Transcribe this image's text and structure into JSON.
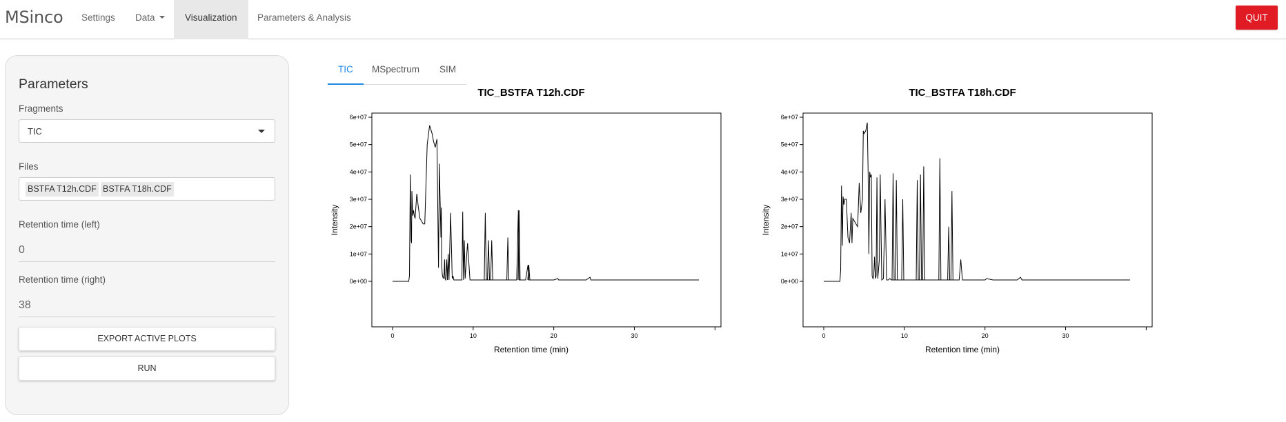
{
  "app": {
    "brand": "MSinco",
    "nav": [
      {
        "label": "Settings",
        "active": false
      },
      {
        "label": "Data",
        "active": false,
        "dropdown": true
      },
      {
        "label": "Visualization",
        "active": true
      },
      {
        "label": "Parameters & Analysis",
        "active": false
      }
    ],
    "quit_label": "QUIT",
    "accent_color": "#e01b24"
  },
  "sidebar": {
    "title": "Parameters",
    "fragments_label": "Fragments",
    "fragments_value": "TIC",
    "files_label": "Files",
    "files": [
      "BSTFA T12h.CDF",
      "BSTFA T18h.CDF"
    ],
    "rt_left_label": "Retention time (left)",
    "rt_left_value": "0",
    "rt_right_label": "Retention time (right)",
    "rt_right_value": "38",
    "export_label": "EXPORT ACTIVE PLOTS",
    "run_label": "RUN"
  },
  "tabs": [
    {
      "label": "TIC",
      "active": true
    },
    {
      "label": "MSpectrum",
      "active": false
    },
    {
      "label": "SIM",
      "active": false
    }
  ],
  "chart_data": [
    {
      "type": "line",
      "title": "TIC_BSTFA T12h.CDF",
      "xlabel": "Retention time (min)",
      "ylabel": "Intensity",
      "xlim": [
        0,
        38
      ],
      "ylim": [
        0,
        60000000.0
      ],
      "xticks": [
        0,
        10,
        20,
        30
      ],
      "yticks": [
        0,
        10000000.0,
        20000000.0,
        30000000.0,
        40000000.0,
        50000000.0,
        60000000.0
      ],
      "ytick_labels": [
        "0e+00",
        "1e+07",
        "2e+07",
        "3e+07",
        "4e+07",
        "5e+07",
        "6e+07"
      ],
      "series": [
        {
          "x": [
            0,
            2.0,
            2.1,
            2.2,
            2.3,
            2.35,
            2.4,
            2.5,
            2.6,
            2.7,
            2.8,
            3.0,
            3.2,
            3.4,
            3.6,
            3.8,
            4.0,
            4.3,
            4.6,
            4.8,
            4.9,
            5.0,
            5.1,
            5.3,
            5.5,
            5.7,
            5.8,
            5.9,
            6.0,
            6.05,
            6.1,
            6.15,
            6.2,
            6.3,
            6.4,
            6.45,
            6.5,
            6.6,
            6.7,
            6.8,
            6.9,
            7.0,
            7.2,
            7.4,
            7.5,
            7.6,
            7.8,
            8.0,
            8.2,
            8.4,
            8.6,
            8.7,
            8.8,
            8.9,
            9.0,
            9.3,
            9.6,
            9.8,
            10.0,
            10.5,
            11.0,
            11.4,
            11.5,
            11.6,
            11.7,
            11.8,
            11.9,
            12.0,
            12.1,
            12.2,
            12.3,
            12.4,
            12.5,
            12.6,
            13.0,
            13.5,
            14.0,
            14.2,
            14.3,
            14.4,
            14.6,
            15.0,
            15.4,
            15.6,
            15.7,
            15.8,
            16.0,
            16.5,
            16.8,
            16.9,
            17.0,
            17.2,
            18.0,
            20.0,
            20.5,
            20.6,
            21.0,
            24.0,
            24.5,
            24.6,
            25.0,
            30.0,
            38.0
          ],
          "y": [
            0,
            0,
            2000000.0,
            39000000.0,
            15000000.0,
            14000000.0,
            33000000.0,
            24000000.0,
            26000000.0,
            24000000.0,
            23000000.0,
            32000000.0,
            27000000.0,
            23000000.0,
            22000000.0,
            21000000.0,
            21000000.0,
            50000000.0,
            57000000.0,
            55000000.0,
            54000000.0,
            52500000.0,
            51000000.0,
            49000000.0,
            52000000.0,
            5000000.0,
            43000000.0,
            30000000.0,
            16000000.0,
            27000000.0,
            6000000.0,
            3000000.0,
            2000000.0,
            1000000.0,
            3000000.0,
            8000000.0,
            1000000.0,
            500000.0,
            8000000.0,
            500000.0,
            10000000.0,
            500000.0,
            25000000.0,
            1000000.0,
            2000000.0,
            500000.0,
            500000.0,
            500000.0,
            500000.0,
            500000.0,
            500000.0,
            25500000.0,
            500000.0,
            15000000.0,
            1000000.0,
            14000000.0,
            500000.0,
            500000.0,
            500000.0,
            500000.0,
            500000.0,
            500000.0,
            500000.0,
            500000.0,
            500000.0,
            500000.0,
            500000.0,
            500000.0,
            500000.0,
            500000.0,
            500000.0,
            500000.0,
            500000.0,
            500000.0,
            500000.0,
            500000.0,
            500000.0,
            500000.0,
            500000.0,
            500000.0,
            500000.0,
            500000.0,
            500000.0,
            26000000.0,
            500000.0,
            500000.0,
            500000.0,
            500000.0,
            6000000.0,
            500000.0,
            500000.0,
            500000.0,
            500000.0,
            500000.0,
            1000000.0,
            500000.0,
            500000.0,
            500000.0,
            1500000.0,
            500000.0,
            500000.0,
            500000.0,
            500000.0
          ]
        }
      ],
      "peaks": [
        [
          11.5,
          25000000.0
        ],
        [
          11.9,
          15000000.0
        ],
        [
          12.3,
          15000000.0
        ],
        [
          14.3,
          16000000.0
        ],
        [
          15.7,
          26000000.0
        ],
        [
          16.9,
          6000000.0
        ]
      ]
    },
    {
      "type": "line",
      "title": "TIC_BSTFA T18h.CDF",
      "xlabel": "Retention time (min)",
      "ylabel": "Intensity",
      "xlim": [
        0,
        38
      ],
      "ylim": [
        0,
        60000000.0
      ],
      "xticks": [
        0,
        10,
        20,
        30
      ],
      "yticks": [
        0,
        10000000.0,
        20000000.0,
        30000000.0,
        40000000.0,
        50000000.0,
        60000000.0
      ],
      "ytick_labels": [
        "0e+00",
        "1e+07",
        "2e+07",
        "3e+07",
        "4e+07",
        "5e+07",
        "6e+07"
      ],
      "series": [
        {
          "x": [
            0,
            2.0,
            2.1,
            2.2,
            2.3,
            2.4,
            2.5,
            2.6,
            2.8,
            3.0,
            3.2,
            3.4,
            3.5,
            3.6,
            3.8,
            4.0,
            4.2,
            4.4,
            4.6,
            4.8,
            4.9,
            5.0,
            5.2,
            5.4,
            5.5,
            5.6,
            5.7,
            5.8,
            5.9,
            6.0,
            6.1,
            6.2,
            6.3,
            6.4,
            6.5,
            6.6,
            6.7,
            6.9,
            7.0,
            7.2,
            7.4,
            7.6,
            7.8,
            8.0,
            8.2,
            8.4,
            8.6,
            8.8,
            9.0,
            9.2,
            9.6,
            10.0,
            11.0,
            11.4,
            11.6,
            12.0,
            12.4,
            12.8,
            13.2,
            14.0,
            14.4,
            15.0,
            15.4,
            15.8,
            16.0,
            16.4,
            16.8,
            17.0,
            17.2,
            17.5,
            18.0,
            20.0,
            20.2,
            21.0,
            24.0,
            24.4,
            24.6,
            25.0,
            30.0,
            38.0
          ],
          "y": [
            0,
            0,
            4000000.0,
            35000000.0,
            13000000.0,
            31000000.0,
            28000000.0,
            30000000.0,
            30000000.0,
            16000000.0,
            14000000.0,
            25000000.0,
            14000000.0,
            23000000.0,
            22000000.0,
            21000000.0,
            20000000.0,
            36000000.0,
            25000000.0,
            30000000.0,
            55000000.0,
            54000000.0,
            55000000.0,
            58000000.0,
            40000000.0,
            10000000.0,
            40000000.0,
            38000000.0,
            39000000.0,
            2000000.0,
            1000000.0,
            2000000.0,
            9000000.0,
            1000000.0,
            2000000.0,
            38000000.0,
            1000000.0,
            8000000.0,
            39000000.0,
            500000.0,
            1000000.0,
            30000000.0,
            500000.0,
            500000.0,
            1000000.0,
            500000.0,
            500000.0,
            500000.0,
            500000.0,
            500000.0,
            500000.0,
            500000.0,
            500000.0,
            500000.0,
            500000.0,
            500000.0,
            500000.0,
            500000.0,
            500000.0,
            500000.0,
            500000.0,
            500000.0,
            500000.0,
            500000.0,
            500000.0,
            500000.0,
            500000.0,
            8000000.0,
            500000.0,
            500000.0,
            500000.0,
            500000.0,
            1000000.0,
            500000.0,
            500000.0,
            1500000.0,
            500000.0,
            500000.0,
            500000.0,
            500000.0
          ]
        }
      ],
      "peaks": [
        [
          8.6,
          39500000.0
        ],
        [
          9.0,
          37000000.0
        ],
        [
          9.8,
          30000000.0
        ],
        [
          11.6,
          37000000.0
        ],
        [
          12.0,
          39000000.0
        ],
        [
          12.4,
          42000000.0
        ],
        [
          14.4,
          45000000.0
        ],
        [
          15.5,
          20000000.0
        ],
        [
          15.9,
          33000000.0
        ]
      ]
    }
  ]
}
